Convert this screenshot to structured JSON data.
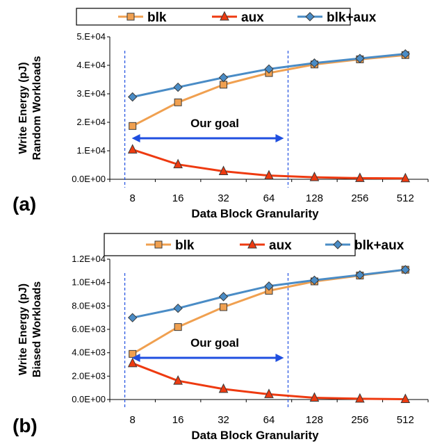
{
  "chart_data": [
    {
      "type": "line",
      "panel_label": "(a)",
      "ylabel_line1": "Write Energy (pJ)",
      "ylabel_line2": "Random Workloads",
      "xlabel": "Data Block Granularity",
      "categories": [
        "8",
        "16",
        "32",
        "64",
        "128",
        "256",
        "512"
      ],
      "ylim": [
        0,
        50000
      ],
      "yticks": [
        "0.0E+00",
        "1.E+04",
        "2.E+04",
        "3.E+04",
        "4.E+04",
        "5.E+04"
      ],
      "ytick_values": [
        0,
        10000,
        20000,
        30000,
        40000,
        50000
      ],
      "annotation": "Our goal",
      "goal_range": [
        "8",
        "64"
      ],
      "legend_position": "top",
      "series": [
        {
          "name": "blk",
          "color": "#f0a050",
          "marker": "square",
          "values": [
            18700,
            27000,
            33200,
            37300,
            40300,
            42100,
            43600
          ]
        },
        {
          "name": "aux",
          "color": "#ee3a10",
          "marker": "triangle",
          "values": [
            10400,
            5200,
            2800,
            1300,
            700,
            400,
            300
          ]
        },
        {
          "name": "blk+aux",
          "color": "#4a8cc6",
          "marker": "diamond",
          "values": [
            28900,
            32300,
            35700,
            38700,
            40800,
            42400,
            44000
          ]
        }
      ]
    },
    {
      "type": "line",
      "panel_label": "(b)",
      "ylabel_line1": "Write Energy (pJ)",
      "ylabel_line2": "Biased Workloads",
      "xlabel": "Data Block Granularity",
      "categories": [
        "8",
        "16",
        "32",
        "64",
        "128",
        "256",
        "512"
      ],
      "ylim": [
        0,
        12000
      ],
      "yticks": [
        "0.0E+00",
        "2.0E+03",
        "4.0E+03",
        "6.0E+03",
        "8.0E+03",
        "1.0E+04",
        "1.2E+04"
      ],
      "ytick_values": [
        0,
        2000,
        4000,
        6000,
        8000,
        10000,
        12000
      ],
      "annotation": "Our goal",
      "goal_range": [
        "8",
        "64"
      ],
      "legend_position": "top",
      "series": [
        {
          "name": "blk",
          "color": "#f0a050",
          "marker": "square",
          "values": [
            3900,
            6200,
            7900,
            9300,
            10100,
            10600,
            11100
          ]
        },
        {
          "name": "aux",
          "color": "#ee3a10",
          "marker": "triangle",
          "values": [
            3100,
            1600,
            900,
            450,
            150,
            70,
            30
          ]
        },
        {
          "name": "blk+aux",
          "color": "#4a8cc6",
          "marker": "diamond",
          "values": [
            7000,
            7800,
            8800,
            9700,
            10200,
            10650,
            11100
          ]
        }
      ]
    }
  ]
}
